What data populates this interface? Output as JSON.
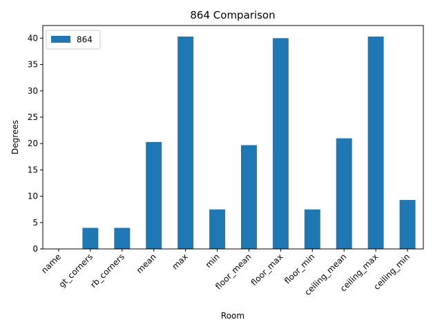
{
  "chart_data": {
    "type": "bar",
    "title": "864 Comparison",
    "xlabel": "Room",
    "ylabel": "Degrees",
    "categories": [
      "name",
      "gt_corners",
      "rb_corners",
      "mean",
      "max",
      "min",
      "floor_mean",
      "floor_max",
      "floor_min",
      "ceiling_mean",
      "ceiling_max",
      "ceiling_min"
    ],
    "series": [
      {
        "name": "864",
        "color": "#1f77b4",
        "values": [
          0,
          4,
          4,
          20.3,
          40.3,
          7.5,
          19.7,
          40.0,
          7.5,
          21.0,
          40.3,
          9.3
        ]
      }
    ],
    "ylim": [
      0,
      42.4
    ],
    "yticks": [
      0,
      5,
      10,
      15,
      20,
      25,
      30,
      35,
      40
    ],
    "legend_position": "top-left",
    "grid": false
  }
}
